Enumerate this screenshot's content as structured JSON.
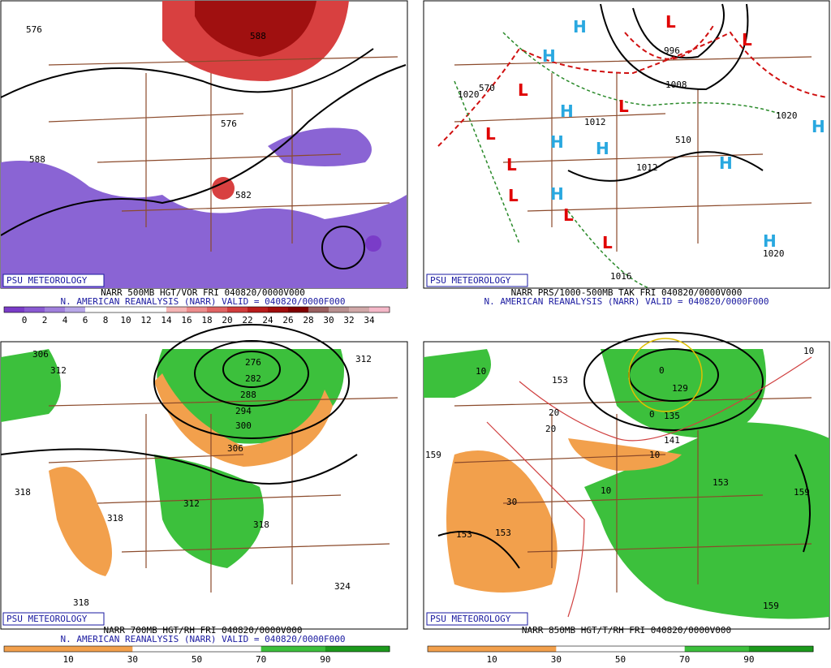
{
  "panels": [
    {
      "badge": "PSU METEOROLOGY",
      "title": "NARR 500MB HGT/VOR FRI 040820/0000V000",
      "subtitle": "N. AMERICAN REANALYSIS (NARR) VALID = 040820/0000F000",
      "contour_labels": [
        "576",
        "588",
        "582",
        "576",
        "588"
      ],
      "scale": {
        "labels": [
          "0",
          "2",
          "4",
          "6",
          "8",
          "10",
          "12",
          "14",
          "16",
          "18",
          "20",
          "22",
          "24",
          "26",
          "28",
          "30",
          "32",
          "34"
        ],
        "colors": [
          "#7a3cc8",
          "#8a5ad2",
          "#a080dc",
          "#b8a8e8",
          "#ffffff",
          "#ffffff",
          "#ffffff",
          "#ffffff",
          "#f4b4b4",
          "#ec8c8c",
          "#e06464",
          "#d03c3c",
          "#b81c1c",
          "#a00c0c",
          "#800000",
          "#9a6060",
          "#b89090",
          "#d0a8a8",
          "#f4b8c8"
        ]
      }
    },
    {
      "badge": "PSU METEOROLOGY",
      "title": "NARR PRS/1000-500MB TAK FRI 040820/0000V000",
      "subtitle": "N. AMERICAN REANALYSIS (NARR) VALID = 040820/0000F000",
      "contour_labels": [
        "1020",
        "1012",
        "996",
        "1008",
        "570",
        "510",
        "1020",
        "1012",
        "1020",
        "1016"
      ],
      "highs": [
        "H",
        "H",
        "H",
        "H",
        "H",
        "H",
        "H",
        "H",
        "H"
      ],
      "lows": [
        "L",
        "L",
        "L",
        "L",
        "L",
        "L",
        "L",
        "L",
        "L"
      ]
    },
    {
      "badge": "PSU METEOROLOGY",
      "title": "NARR 700MB HGT/RH FRI 040820/0000V000",
      "subtitle": "N. AMERICAN REANALYSIS (NARR) VALID = 040820/0000F000",
      "contour_labels": [
        "306",
        "312",
        "312",
        "276",
        "282",
        "288",
        "294",
        "300",
        "306",
        "318",
        "318",
        "312",
        "318",
        "324",
        "318"
      ],
      "scale": {
        "labels": [
          "10",
          "30",
          "50",
          "70",
          "90"
        ],
        "colors": [
          "#f2a04c",
          "#f2a04c",
          "#ffffff",
          "#ffffff",
          "#3cc03c",
          "#1c9a1c"
        ]
      }
    },
    {
      "badge": "PSU METEOROLOGY",
      "title": "NARR 850MB HGT/T/RH FRI 040820/0000V000",
      "contour_labels": [
        "153",
        "159",
        "129",
        "135",
        "141",
        "153",
        "153",
        "159",
        "159",
        "153"
      ],
      "temp_labels": [
        "10",
        "20",
        "20",
        "10",
        "10",
        "30",
        "0",
        "0",
        "10"
      ],
      "scale": {
        "labels": [
          "10",
          "30",
          "50",
          "70",
          "90"
        ],
        "colors": [
          "#f2a04c",
          "#f2a04c",
          "#ffffff",
          "#ffffff",
          "#3cc03c",
          "#1c9a1c"
        ]
      }
    }
  ]
}
